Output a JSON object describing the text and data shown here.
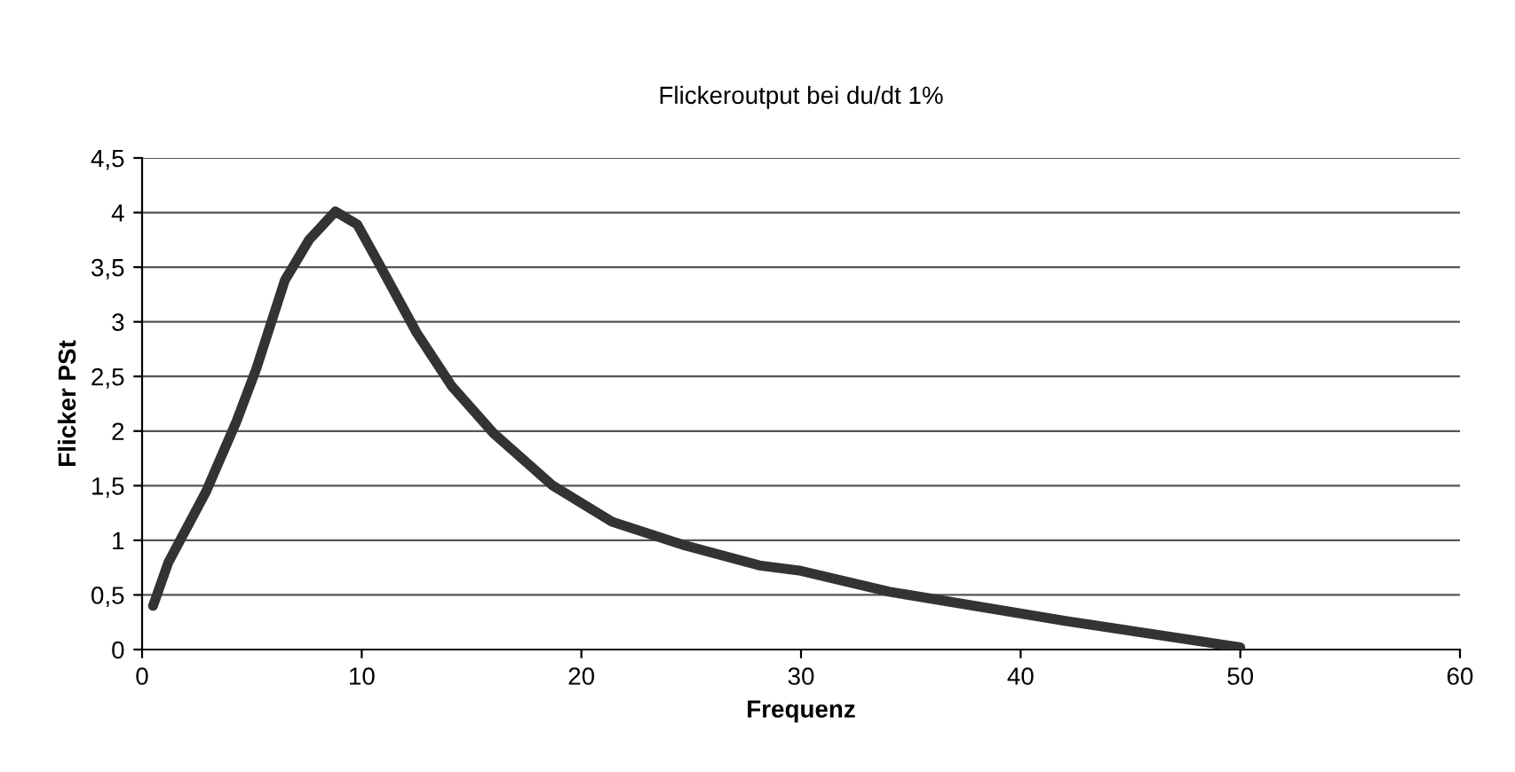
{
  "chart_data": {
    "type": "line",
    "title": "Flickeroutput bei du/dt 1%",
    "xlabel": "Frequenz",
    "ylabel": "Flicker PSt",
    "series": [
      {
        "color": "#333333",
        "x": [
          0.5,
          1.2,
          2.9,
          4.3,
          5.2,
          6.5,
          7.6,
          8.8,
          9.8,
          10.9,
          12.5,
          14.1,
          16.0,
          18.7,
          21.4,
          24.6,
          28.1,
          30.0,
          34.0,
          42.1,
          50.0
        ],
        "values": [
          0.4,
          0.8,
          1.44,
          2.09,
          2.57,
          3.38,
          3.75,
          4.01,
          3.89,
          3.49,
          2.9,
          2.41,
          1.98,
          1.5,
          1.17,
          0.96,
          0.77,
          0.72,
          0.53,
          0.26,
          0.02
        ]
      }
    ],
    "xlim": [
      0,
      60
    ],
    "xticks": [
      0,
      10,
      20,
      30,
      40,
      50,
      60
    ],
    "ylim": [
      0,
      4.5
    ],
    "yticks": [
      {
        "value": 0,
        "label": "0"
      },
      {
        "value": 0.5,
        "label": "0,5"
      },
      {
        "value": 1,
        "label": "1"
      },
      {
        "value": 1.5,
        "label": "1,5"
      },
      {
        "value": 2,
        "label": "2"
      },
      {
        "value": 2.5,
        "label": "2,5"
      },
      {
        "value": 3,
        "label": "3"
      },
      {
        "value": 3.5,
        "label": "3,5"
      },
      {
        "value": 4,
        "label": "4"
      },
      {
        "value": 4.5,
        "label": "4,5"
      }
    ],
    "grid": "y",
    "legend": false
  }
}
